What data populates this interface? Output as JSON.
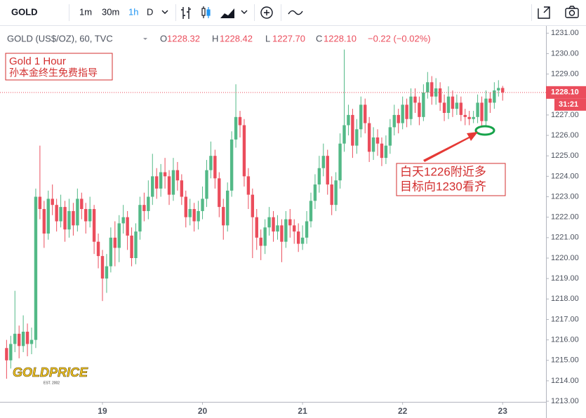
{
  "toolbar": {
    "symbol": "GOLD",
    "intervals": [
      "1m",
      "30m",
      "1h",
      "D"
    ]
  },
  "legend": {
    "title": "GOLD (US$/OZ), 60, TVC",
    "items": [
      {
        "key": "O",
        "value": "1228.32"
      },
      {
        "key": "H",
        "value": "1228.42"
      },
      {
        "key": "L",
        "value": "1227.70"
      },
      {
        "key": "C",
        "value": "1228.10"
      }
    ],
    "change": "−0.22 (−0.02%)"
  },
  "logo": {
    "name": "GOLDPRICE",
    "est": "EST. 2002"
  },
  "chart_data": {
    "type": "candlestick",
    "up_color": "#53b987",
    "down_color": "#eb4d5c",
    "grid": false,
    "ylim": [
      1212.9,
      1231.25
    ],
    "yticks": [
      {
        "value": 1213,
        "label": "1213.00"
      },
      {
        "value": 1214,
        "label": "1214.00"
      },
      {
        "value": 1215,
        "label": "1215.00"
      },
      {
        "value": 1216,
        "label": "1216.00"
      },
      {
        "value": 1217,
        "label": "1217.00"
      },
      {
        "value": 1218,
        "label": "1218.00"
      },
      {
        "value": 1219,
        "label": "1219.00"
      },
      {
        "value": 1220,
        "label": "1220.00"
      },
      {
        "value": 1221,
        "label": "1221.00"
      },
      {
        "value": 1222,
        "label": "1222.00"
      },
      {
        "value": 1223,
        "label": "1223.00"
      },
      {
        "value": 1224,
        "label": "1224.00"
      },
      {
        "value": 1225,
        "label": "1225.00"
      },
      {
        "value": 1226,
        "label": "1226.00"
      },
      {
        "value": 1227,
        "label": "1227.00"
      },
      {
        "value": 1228,
        "label": "1228.00"
      },
      {
        "value": 1229,
        "label": "1229.00"
      },
      {
        "value": 1230,
        "label": "1230.00"
      },
      {
        "value": 1231,
        "label": "1231.00"
      }
    ],
    "last_price": {
      "value": 1228.1,
      "label": "1228.10"
    },
    "countdown": "31:21",
    "annotations": [
      "Gold 1 Hour",
      "孙本金终生免费指导"
    ],
    "callout": [
      "白天1226附近多",
      "目标向1230看齐"
    ],
    "categories": [
      null,
      null,
      null,
      null,
      null,
      null,
      null,
      null,
      null,
      null,
      null,
      null,
      null,
      null,
      null,
      null,
      null,
      null,
      null,
      null,
      null,
      null,
      null,
      "19",
      null,
      null,
      null,
      null,
      null,
      null,
      null,
      null,
      null,
      null,
      null,
      null,
      null,
      null,
      null,
      null,
      null,
      null,
      null,
      null,
      null,
      null,
      null,
      "20",
      null,
      null,
      null,
      null,
      null,
      null,
      null,
      null,
      null,
      null,
      null,
      null,
      null,
      null,
      null,
      null,
      null,
      null,
      null,
      null,
      null,
      null,
      null,
      "21",
      null,
      null,
      null,
      null,
      null,
      null,
      null,
      null,
      null,
      null,
      null,
      null,
      null,
      null,
      null,
      null,
      null,
      null,
      null,
      null,
      null,
      null,
      null,
      "22",
      null,
      null,
      null,
      null,
      null,
      null,
      null,
      null,
      null,
      null,
      null,
      null,
      null,
      null,
      null,
      null,
      null,
      null,
      null,
      null,
      null,
      null,
      null,
      "23"
    ],
    "open": [
      1215.6,
      1215.0,
      1215.8,
      1216.3,
      1215.7,
      1216.4,
      1215.8,
      1216.0,
      1223.0,
      1222.4,
      1221.2,
      1222.9,
      1222.6,
      1221.8,
      1222.5,
      1221.4,
      1222.3,
      1221.6,
      1222.9,
      1222.4,
      1221.8,
      1222.4,
      1220.8,
      1220.1,
      1219.0,
      1219.6,
      1221.0,
      1220.5,
      1221.7,
      1222.0,
      1221.1,
      1220.0,
      1221.3,
      1222.6,
      1222.3,
      1223.0,
      1224.0,
      1223.4,
      1224.2,
      1224.0,
      1223.1,
      1224.3,
      1223.8,
      1223.0,
      1222.0,
      1222.4,
      1221.8,
      1222.3,
      1222.9,
      1224.3,
      1225.0,
      1223.9,
      1222.5,
      1221.6,
      1223.3,
      1225.8,
      1226.9,
      1226.5,
      1224.0,
      1223.1,
      1222.0,
      1221.0,
      1220.6,
      1221.5,
      1222.0,
      1221.3,
      1221.6,
      1220.8,
      1221.9,
      1221.6,
      1221.3,
      1220.7,
      1221.0,
      1221.8,
      1222.8,
      1223.6,
      1224.4,
      1225.0,
      1223.6,
      1222.6,
      1223.8,
      1225.6,
      1226.5,
      1227.0,
      1225.5,
      1226.3,
      1227.5,
      1226.6,
      1225.2,
      1225.9,
      1225.6,
      1224.9,
      1225.5,
      1226.4,
      1227.0,
      1226.6,
      1227.5,
      1226.8,
      1227.9,
      1227.6,
      1226.9,
      1228.1,
      1228.6,
      1227.9,
      1228.3,
      1227.6,
      1227.1,
      1227.9,
      1227.3,
      1227.6,
      1227.0,
      1226.9,
      1226.8,
      1226.9,
      1227.6,
      1226.7,
      1227.8,
      1227.6,
      1228.2,
      1228.32
    ],
    "high": [
      1216.0,
      1216.2,
      1218.4,
      1216.7,
      1217.2,
      1216.8,
      1216.6,
      1223.4,
      1225.5,
      1222.8,
      1223.3,
      1223.6,
      1222.9,
      1223.1,
      1222.8,
      1222.9,
      1222.7,
      1223.4,
      1223.2,
      1222.7,
      1223.0,
      1222.6,
      1221.2,
      1220.4,
      1220.2,
      1221.5,
      1221.8,
      1222.1,
      1222.6,
      1222.3,
      1221.5,
      1221.7,
      1223.0,
      1223.2,
      1223.8,
      1225.1,
      1224.4,
      1224.6,
      1224.9,
      1224.3,
      1224.9,
      1224.7,
      1224.1,
      1223.3,
      1222.9,
      1222.7,
      1222.8,
      1223.5,
      1224.8,
      1225.7,
      1225.3,
      1224.2,
      1222.9,
      1223.7,
      1226.2,
      1228.5,
      1227.2,
      1226.8,
      1224.4,
      1223.4,
      1222.4,
      1221.4,
      1221.9,
      1222.5,
      1222.3,
      1222.1,
      1221.9,
      1222.3,
      1222.4,
      1221.9,
      1221.7,
      1221.6,
      1222.3,
      1223.2,
      1224.1,
      1225.0,
      1225.6,
      1225.3,
      1224.0,
      1224.2,
      1226.1,
      1230.2,
      1227.5,
      1227.3,
      1226.8,
      1227.9,
      1227.8,
      1226.9,
      1226.4,
      1226.3,
      1225.9,
      1226.0,
      1226.8,
      1227.5,
      1227.3,
      1227.9,
      1227.8,
      1228.3,
      1228.3,
      1227.9,
      1228.5,
      1229.1,
      1228.9,
      1228.8,
      1228.6,
      1228.0,
      1228.4,
      1228.2,
      1228.0,
      1227.9,
      1227.3,
      1227.2,
      1227.2,
      1228.0,
      1227.9,
      1228.2,
      1228.1,
      1228.6,
      1228.7,
      1228.42
    ],
    "low": [
      1214.1,
      1214.6,
      1215.4,
      1215.1,
      1215.4,
      1215.2,
      1215.3,
      1215.6,
      1221.9,
      1220.5,
      1220.9,
      1222.1,
      1221.3,
      1221.5,
      1220.8,
      1221.0,
      1221.1,
      1221.3,
      1221.9,
      1221.2,
      1221.5,
      1220.2,
      1219.5,
      1217.9,
      1218.3,
      1219.3,
      1219.6,
      1219.8,
      1221.2,
      1220.4,
      1219.6,
      1219.7,
      1220.9,
      1221.8,
      1221.9,
      1222.6,
      1222.9,
      1223.0,
      1223.4,
      1222.6,
      1222.8,
      1223.3,
      1222.6,
      1221.5,
      1221.6,
      1221.3,
      1221.4,
      1221.9,
      1222.5,
      1223.9,
      1223.4,
      1222.0,
      1220.9,
      1221.3,
      1223.0,
      1225.4,
      1225.9,
      1223.5,
      1222.4,
      1220.0,
      1220.4,
      1219.9,
      1220.2,
      1221.1,
      1220.8,
      1220.9,
      1219.8,
      1220.5,
      1221.0,
      1220.7,
      1220.3,
      1220.4,
      1220.7,
      1221.5,
      1222.4,
      1223.2,
      1224.0,
      1223.1,
      1222.1,
      1222.3,
      1223.4,
      1225.2,
      1226.0,
      1224.9,
      1225.1,
      1225.9,
      1226.1,
      1224.7,
      1224.8,
      1225.0,
      1224.5,
      1224.6,
      1225.1,
      1226.0,
      1226.1,
      1226.3,
      1226.4,
      1226.5,
      1227.1,
      1226.5,
      1226.7,
      1227.8,
      1227.5,
      1227.5,
      1227.2,
      1226.7,
      1226.8,
      1226.9,
      1227.0,
      1226.7,
      1226.5,
      1226.5,
      1226.6,
      1226.6,
      1226.4,
      1226.4,
      1227.1,
      1227.3,
      1227.9,
      1227.7
    ],
    "close": [
      1215.0,
      1215.8,
      1216.3,
      1215.7,
      1216.4,
      1215.8,
      1216.0,
      1223.0,
      1222.4,
      1221.2,
      1222.9,
      1222.6,
      1221.8,
      1222.5,
      1221.4,
      1222.3,
      1221.6,
      1222.9,
      1222.4,
      1221.8,
      1222.4,
      1220.8,
      1220.1,
      1219.0,
      1219.6,
      1221.0,
      1220.5,
      1221.7,
      1222.0,
      1221.1,
      1220.0,
      1221.3,
      1222.6,
      1222.3,
      1223.0,
      1224.0,
      1223.4,
      1224.2,
      1224.0,
      1223.1,
      1224.3,
      1223.8,
      1223.0,
      1222.0,
      1222.4,
      1221.8,
      1222.3,
      1222.9,
      1224.3,
      1225.0,
      1223.9,
      1222.5,
      1221.6,
      1223.3,
      1225.8,
      1226.9,
      1226.5,
      1224.0,
      1223.1,
      1222.0,
      1221.0,
      1220.6,
      1221.5,
      1222.0,
      1221.3,
      1221.6,
      1220.8,
      1221.9,
      1221.6,
      1221.3,
      1220.7,
      1221.0,
      1221.8,
      1222.8,
      1223.6,
      1224.4,
      1225.0,
      1223.6,
      1222.6,
      1223.8,
      1225.6,
      1226.5,
      1227.0,
      1225.5,
      1226.3,
      1227.5,
      1226.6,
      1225.2,
      1225.9,
      1225.6,
      1224.9,
      1225.5,
      1226.4,
      1227.0,
      1226.6,
      1227.5,
      1226.8,
      1227.9,
      1227.6,
      1226.9,
      1228.1,
      1228.6,
      1227.9,
      1228.3,
      1227.6,
      1227.1,
      1227.9,
      1227.3,
      1227.6,
      1227.0,
      1226.9,
      1226.8,
      1226.9,
      1227.6,
      1226.7,
      1227.8,
      1227.6,
      1228.2,
      1228.32,
      1228.1
    ]
  }
}
